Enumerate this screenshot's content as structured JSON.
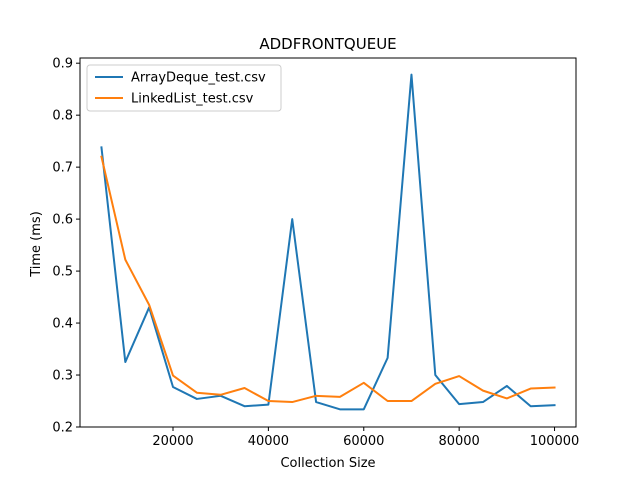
{
  "chart_data": {
    "type": "line",
    "title": "ADDFRONTQUEUE",
    "xlabel": "Collection Size",
    "ylabel": "Time (ms)",
    "xlim": [
      500,
      104500
    ],
    "ylim": [
      0.2,
      0.91
    ],
    "xticks": [
      20000,
      40000,
      60000,
      80000,
      100000
    ],
    "xtick_labels": [
      "20000",
      "40000",
      "60000",
      "80000",
      "100000"
    ],
    "yticks": [
      0.2,
      0.3,
      0.4,
      0.5,
      0.6,
      0.7,
      0.8,
      0.9
    ],
    "ytick_labels": [
      "0.2",
      "0.3",
      "0.4",
      "0.5",
      "0.6",
      "0.7",
      "0.8",
      "0.9"
    ],
    "grid": false,
    "legend_position": "top-left",
    "x": [
      5000,
      10000,
      15000,
      20000,
      25000,
      30000,
      35000,
      40000,
      45000,
      50000,
      55000,
      60000,
      65000,
      70000,
      75000,
      80000,
      85000,
      90000,
      95000,
      100000
    ],
    "series": [
      {
        "name": "ArrayDeque_test.csv",
        "color": "#1f77b4",
        "values": [
          0.738,
          0.325,
          0.43,
          0.277,
          0.254,
          0.26,
          0.24,
          0.243,
          0.6,
          0.248,
          0.234,
          0.234,
          0.333,
          0.878,
          0.3,
          0.244,
          0.248,
          0.279,
          0.24,
          0.242
        ]
      },
      {
        "name": "LinkedList_test.csv",
        "color": "#ff7f0e",
        "values": [
          0.72,
          0.522,
          0.435,
          0.299,
          0.266,
          0.262,
          0.275,
          0.25,
          0.248,
          0.26,
          0.258,
          0.285,
          0.25,
          0.25,
          0.283,
          0.298,
          0.27,
          0.255,
          0.274,
          0.276
        ]
      }
    ]
  }
}
